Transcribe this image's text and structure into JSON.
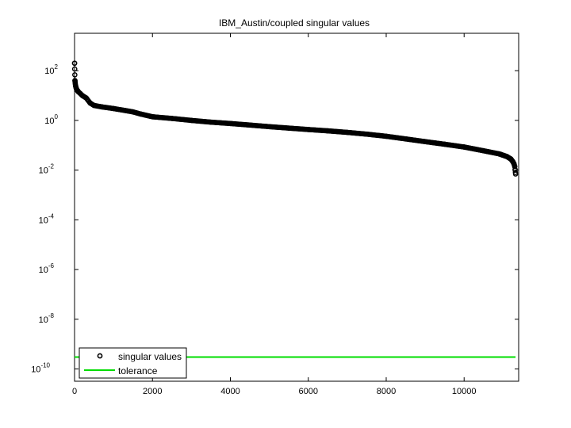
{
  "chart_data": {
    "type": "scatter",
    "title": "IBM_Austin/coupled singular values",
    "xlabel": "",
    "ylabel": "",
    "xlim": [
      0,
      11400
    ],
    "ylim": [
      3.2e-11,
      3200.0
    ],
    "y_scale": "log",
    "x_ticks": [
      {
        "value": 0,
        "label": "0"
      },
      {
        "value": 2000,
        "label": "2000"
      },
      {
        "value": 4000,
        "label": "4000"
      },
      {
        "value": 6000,
        "label": "6000"
      },
      {
        "value": 8000,
        "label": "8000"
      },
      {
        "value": 10000,
        "label": "10000"
      }
    ],
    "y_ticks": [
      {
        "value": 100.0,
        "base": "10",
        "exp": "2"
      },
      {
        "value": 1.0,
        "base": "10",
        "exp": "0"
      },
      {
        "value": 0.01,
        "base": "10",
        "exp": "-2"
      },
      {
        "value": 0.0001,
        "base": "10",
        "exp": "-4"
      },
      {
        "value": 1e-06,
        "base": "10",
        "exp": "-6"
      },
      {
        "value": 1e-08,
        "base": "10",
        "exp": "-8"
      },
      {
        "value": 1e-10,
        "base": "10",
        "exp": "-10"
      }
    ],
    "grid": false,
    "legend_position": "bottom-left",
    "series": [
      {
        "name": "singular values",
        "marker": "circle",
        "color": "#000000",
        "x": [
          1,
          10,
          25,
          50,
          100,
          150,
          200,
          300,
          400,
          500,
          700,
          1000,
          1300,
          1500,
          1700,
          2000,
          2500,
          3000,
          3500,
          4000,
          4500,
          5000,
          5500,
          6000,
          6500,
          7000,
          7500,
          8000,
          8500,
          9000,
          9500,
          10000,
          10500,
          10900,
          11100,
          11200,
          11250,
          11280,
          11300,
          11310,
          11320
        ],
        "y": [
          200,
          40,
          25,
          18,
          14,
          12,
          10,
          8,
          5,
          4,
          3.5,
          3,
          2.5,
          2.2,
          1.8,
          1.4,
          1.2,
          1.0,
          0.85,
          0.75,
          0.65,
          0.56,
          0.49,
          0.43,
          0.38,
          0.33,
          0.28,
          0.23,
          0.18,
          0.14,
          0.11,
          0.085,
          0.06,
          0.045,
          0.035,
          0.028,
          0.022,
          0.018,
          0.014,
          0.01,
          0.007
        ]
      },
      {
        "name": "tolerance",
        "marker": "line",
        "color": "#00dd00",
        "x": [
          0,
          11320
        ],
        "y": [
          3e-10,
          3e-10
        ]
      }
    ]
  }
}
